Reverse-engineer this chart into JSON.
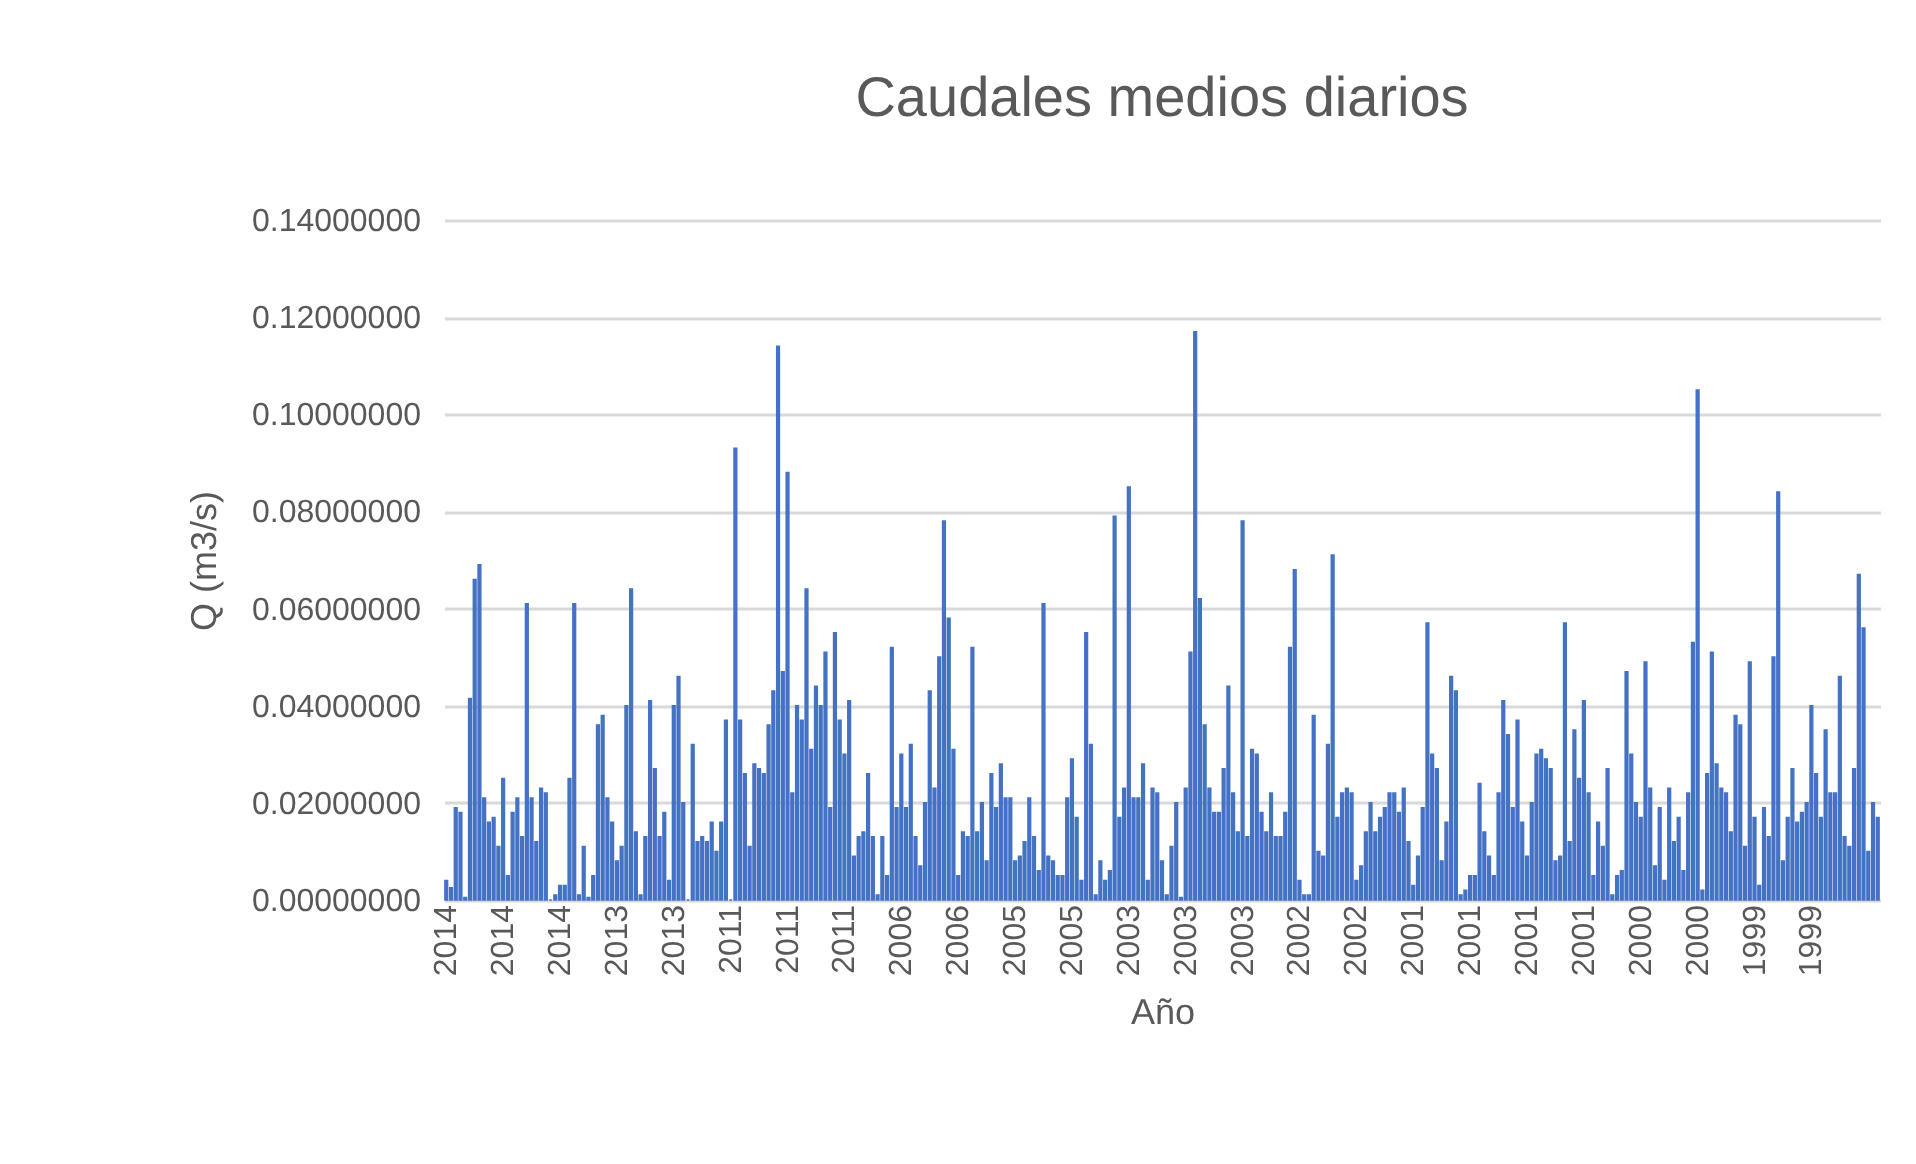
{
  "chart_data": {
    "type": "bar",
    "title": "Caudales medios diarios",
    "xlabel": "Año",
    "ylabel": "Q (m3/s)",
    "color": "#4472c4",
    "grid": "y",
    "ylim": [
      0,
      0.14
    ],
    "yticks": [
      {
        "value": 0,
        "label": "0.00000000"
      },
      {
        "value": 0.02,
        "label": "0.02000000"
      },
      {
        "value": 0.04,
        "label": "0.04000000"
      },
      {
        "value": 0.06,
        "label": "0.06000000"
      },
      {
        "value": 0.08,
        "label": "0.08000000"
      },
      {
        "value": 0.1,
        "label": "0.10000000"
      },
      {
        "value": 0.12,
        "label": "0.12000000"
      },
      {
        "value": 0.14,
        "label": "0.14000000"
      }
    ],
    "categories": [
      "2014",
      null,
      null,
      null,
      null,
      null,
      null,
      null,
      null,
      null,
      null,
      null,
      "2014",
      null,
      null,
      null,
      null,
      null,
      null,
      null,
      null,
      null,
      null,
      null,
      "2014",
      null,
      null,
      null,
      null,
      null,
      null,
      null,
      null,
      null,
      null,
      null,
      "2013",
      null,
      null,
      null,
      null,
      null,
      null,
      null,
      null,
      null,
      null,
      null,
      "2013",
      null,
      null,
      null,
      null,
      null,
      null,
      null,
      null,
      null,
      null,
      null,
      "2011",
      null,
      null,
      null,
      null,
      null,
      null,
      null,
      null,
      null,
      null,
      null,
      "2011",
      null,
      null,
      null,
      null,
      null,
      null,
      null,
      null,
      null,
      null,
      null,
      "2011",
      null,
      null,
      null,
      null,
      null,
      null,
      null,
      null,
      null,
      null,
      null,
      "2006",
      null,
      null,
      null,
      null,
      null,
      null,
      null,
      null,
      null,
      null,
      null,
      "2006",
      null,
      null,
      null,
      null,
      null,
      null,
      null,
      null,
      null,
      null,
      null,
      "2005",
      null,
      null,
      null,
      null,
      null,
      null,
      null,
      null,
      null,
      null,
      null,
      "2005",
      null,
      null,
      null,
      null,
      null,
      null,
      null,
      null,
      null,
      null,
      null,
      "2003",
      null,
      null,
      null,
      null,
      null,
      null,
      null,
      null,
      null,
      null,
      null,
      "2003",
      null,
      null,
      null,
      null,
      null,
      null,
      null,
      null,
      null,
      null,
      null,
      "2003",
      null,
      null,
      null,
      null,
      null,
      null,
      null,
      null,
      null,
      null,
      null,
      "2002",
      null,
      null,
      null,
      null,
      null,
      null,
      null,
      null,
      null,
      null,
      null,
      "2002",
      null,
      null,
      null,
      null,
      null,
      null,
      null,
      null,
      null,
      null,
      null,
      "2001",
      null,
      null,
      null,
      null,
      null,
      null,
      null,
      null,
      null,
      null,
      null,
      "2001",
      null,
      null,
      null,
      null,
      null,
      null,
      null,
      null,
      null,
      null,
      null,
      "2001",
      null,
      null,
      null,
      null,
      null,
      null,
      null,
      null,
      null,
      null,
      null,
      "2001",
      null,
      null,
      null,
      null,
      null,
      null,
      null,
      null,
      null,
      null,
      null,
      "2000",
      null,
      null,
      null,
      null,
      null,
      null,
      null,
      null,
      null,
      null,
      null,
      "2000",
      null,
      null,
      null,
      null,
      null,
      null,
      null,
      null,
      null,
      null,
      null,
      "1999",
      null,
      null,
      null,
      null,
      null,
      null,
      null,
      null,
      null,
      null,
      null,
      "1999",
      null,
      null,
      null,
      null,
      null,
      null,
      null,
      null,
      null,
      null,
      null,
      null,
      null,
      null
    ],
    "values": [
      0.004,
      0.0025,
      0.019,
      0.018,
      0.0005,
      0.0415,
      0.066,
      0.069,
      0.021,
      0.016,
      0.017,
      0.011,
      0.025,
      0.005,
      0.018,
      0.021,
      0.013,
      0.061,
      0.021,
      0.012,
      0.023,
      0.022,
      0,
      0.001,
      0.003,
      0.003,
      0.025,
      0.061,
      0.001,
      0.011,
      0.0005,
      0.005,
      0.036,
      0.038,
      0.021,
      0.016,
      0.008,
      0.011,
      0.04,
      0.064,
      0.014,
      0.001,
      0.013,
      0.041,
      0.027,
      0.013,
      0.018,
      0.004,
      0.04,
      0.046,
      0.02,
      0,
      0.032,
      0.012,
      0.013,
      0.012,
      0.016,
      0.01,
      0.016,
      0.037,
      0,
      0.093,
      0.037,
      0.026,
      0.011,
      0.028,
      0.027,
      0.026,
      0.036,
      0.043,
      0.114,
      0.047,
      0.088,
      0.022,
      0.04,
      0.037,
      0.064,
      0.031,
      0.044,
      0.04,
      0.051,
      0.019,
      0.055,
      0.037,
      0.03,
      0.041,
      0.009,
      0.013,
      0.014,
      0.026,
      0.013,
      0.001,
      0.013,
      0.005,
      0.052,
      0.019,
      0.03,
      0.019,
      0.032,
      0.013,
      0.007,
      0.02,
      0.043,
      0.023,
      0.05,
      0.078,
      0.058,
      0.031,
      0.005,
      0.014,
      0.013,
      0.052,
      0.014,
      0.02,
      0.008,
      0.026,
      0.019,
      0.028,
      0.021,
      0.021,
      0.008,
      0.009,
      0.012,
      0.021,
      0.013,
      0.006,
      0.061,
      0.009,
      0.008,
      0.005,
      0.005,
      0.021,
      0.029,
      0.017,
      0.004,
      0.055,
      0.032,
      0.001,
      0.008,
      0.004,
      0.006,
      0.079,
      0.017,
      0.023,
      0.085,
      0.021,
      0.021,
      0.028,
      0.004,
      0.023,
      0.022,
      0.008,
      0.001,
      0.011,
      0.02,
      0.0005,
      0.023,
      0.051,
      0.117,
      0.062,
      0.036,
      0.023,
      0.018,
      0.018,
      0.027,
      0.044,
      0.022,
      0.014,
      0.078,
      0.013,
      0.031,
      0.03,
      0.018,
      0.014,
      0.022,
      0.013,
      0.013,
      0.018,
      0.052,
      0.068,
      0.004,
      0.001,
      0.001,
      0.038,
      0.01,
      0.009,
      0.032,
      0.071,
      0.017,
      0.022,
      0.023,
      0.022,
      0.004,
      0.007,
      0.014,
      0.02,
      0.014,
      0.017,
      0.019,
      0.022,
      0.022,
      0.018,
      0.023,
      0.012,
      0.003,
      0.009,
      0.019,
      0.057,
      0.03,
      0.027,
      0.008,
      0.016,
      0.046,
      0.043,
      0.001,
      0.002,
      0.005,
      0.005,
      0.024,
      0.014,
      0.009,
      0.005,
      0.022,
      0.041,
      0.034,
      0.019,
      0.037,
      0.016,
      0.009,
      0.02,
      0.03,
      0.031,
      0.029,
      0.027,
      0.008,
      0.009,
      0.057,
      0.012,
      0.035,
      0.025,
      0.041,
      0.022,
      0.005,
      0.016,
      0.011,
      0.027,
      0.001,
      0.005,
      0.006,
      0.047,
      0.03,
      0.02,
      0.017,
      0.049,
      0.023,
      0.007,
      0.019,
      0.004,
      0.023,
      0.012,
      0.017,
      0.006,
      0.022,
      0.053,
      0.105,
      0.002,
      0.026,
      0.051,
      0.028,
      0.023,
      0.022,
      0.014,
      0.038,
      0.036,
      0.011,
      0.049,
      0.017,
      0.003,
      0.019,
      0.013,
      0.05,
      0.084,
      0.008,
      0.017,
      0.027,
      0.016,
      0.018,
      0.02,
      0.04,
      0.026,
      0.017,
      0.035,
      0.022,
      0.022,
      0.046,
      0.013,
      0.011,
      0.027,
      0.067,
      0.056,
      0.01,
      0.02,
      0.017
    ]
  }
}
